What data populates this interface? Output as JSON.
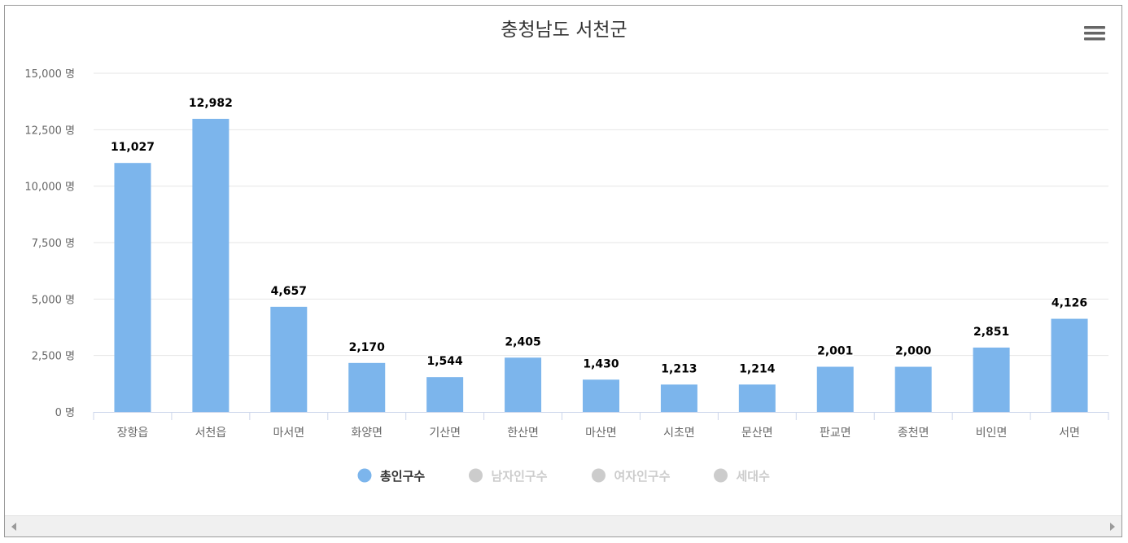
{
  "chart_data": {
    "type": "bar",
    "title": "충청남도 서천군",
    "categories": [
      "장항읍",
      "서천읍",
      "마서면",
      "화양면",
      "기산면",
      "한산면",
      "마산면",
      "시초면",
      "문산면",
      "판교면",
      "종천면",
      "비인면",
      "서면"
    ],
    "series": [
      {
        "name": "총인구수",
        "values": [
          11027,
          12982,
          4657,
          2170,
          1544,
          2405,
          1430,
          1213,
          1214,
          2001,
          2000,
          2851,
          4126
        ],
        "data_labels": [
          "11,027",
          "12,982",
          "4,657",
          "2,170",
          "1,544",
          "2,405",
          "1,430",
          "1,213",
          "1,214",
          "2,001",
          "2,000",
          "2,851",
          "4,126"
        ],
        "color": "#7cb5ec",
        "visible": true
      }
    ],
    "legend": [
      {
        "name": "총인구수",
        "visible": true,
        "color": "#7cb5ec"
      },
      {
        "name": "남자인구수",
        "visible": false,
        "color": "#cccccc"
      },
      {
        "name": "여자인구수",
        "visible": false,
        "color": "#cccccc"
      },
      {
        "name": "세대수",
        "visible": false,
        "color": "#cccccc"
      }
    ],
    "legend_placement": "bottom-center",
    "ylim": [
      0,
      15000
    ],
    "yticks": [
      0,
      2500,
      5000,
      7500,
      10000,
      12500,
      15000
    ],
    "ytick_labels": [
      "0 명",
      "2,500 명",
      "5,000 명",
      "7,500 명",
      "10,000 명",
      "12,500 명",
      "15,000 명"
    ],
    "xlabel": "",
    "ylabel": "",
    "grid": true
  },
  "colors": {
    "grid": "#e6e6e6",
    "axis": "#ccd6eb",
    "legend_hidden": "#cccccc",
    "title": "#333333",
    "menu_icon": "#666666"
  },
  "icons": {
    "menu": "hamburger-menu-icon",
    "scroll_left": "arrow-left-icon",
    "scroll_right": "arrow-right-icon"
  }
}
